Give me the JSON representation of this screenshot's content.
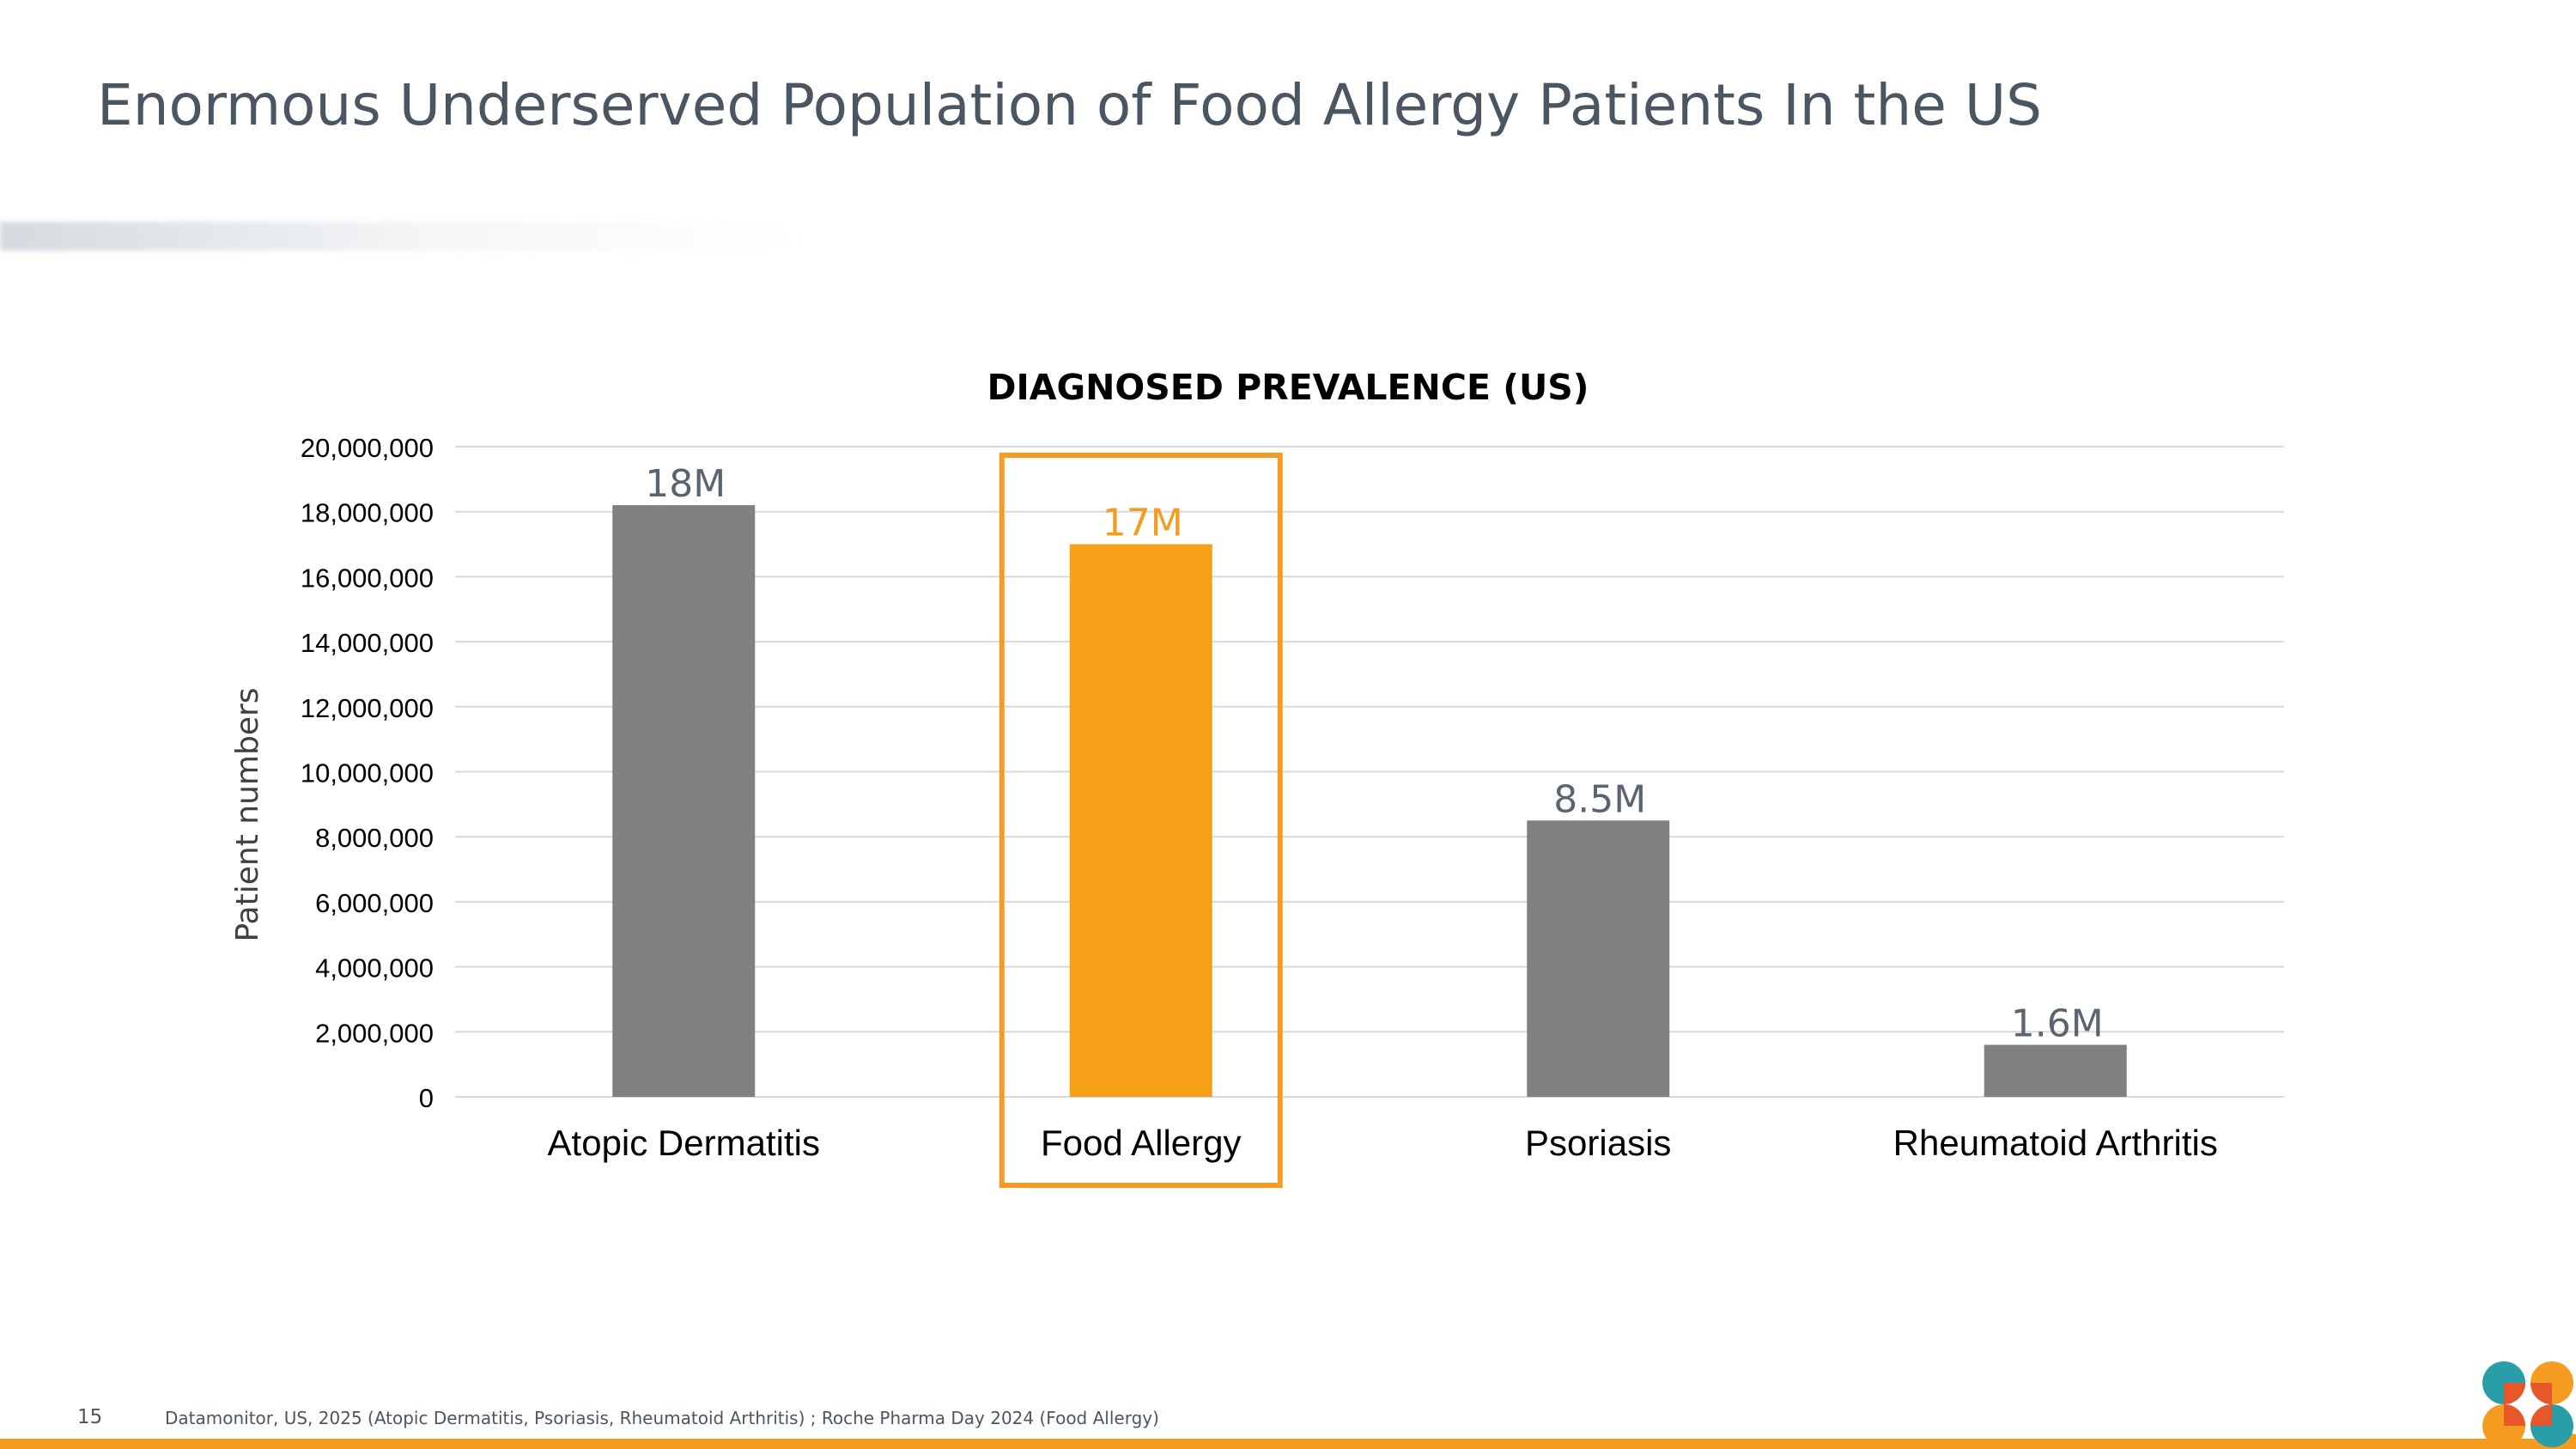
{
  "slide": {
    "title": "Enormous Underserved Population of Food Allergy Patients In the US",
    "page_number": "15",
    "source": "Datamonitor, US, 2025 (Atopic Dermatitis, Psoriasis, Rheumatoid Arthritis) ; Roche Pharma Day 2024 (Food Allergy)"
  },
  "colors": {
    "bar_default": "#808080",
    "bar_highlight": "#f7a11b",
    "label_default": "#5a6570",
    "label_highlight": "#f39c1f",
    "highlight_box": "#f39c1f",
    "gridline": "#d9d9d9",
    "accent": "#f39c1f"
  },
  "chart_data": {
    "type": "bar",
    "title": "DIAGNOSED PREVALENCE (US)",
    "xlabel": "",
    "ylabel": "Patient numbers",
    "categories": [
      "Atopic Dermatitis",
      "Food Allergy",
      "Psoriasis",
      "Rheumatoid Arthritis"
    ],
    "values": [
      18200000,
      17000000,
      8500000,
      1600000
    ],
    "data_labels": [
      "18M",
      "17M",
      "8.5M",
      "1.6M"
    ],
    "highlight_category": "Food Allergy",
    "ylim": [
      0,
      20000000
    ],
    "ytick_step": 2000000,
    "ytick_labels": [
      "0",
      "2,000,000",
      "4,000,000",
      "6,000,000",
      "8,000,000",
      "10,000,000",
      "12,000,000",
      "14,000,000",
      "16,000,000",
      "18,000,000",
      "20,000,000"
    ],
    "grid": true,
    "legend": "none"
  }
}
